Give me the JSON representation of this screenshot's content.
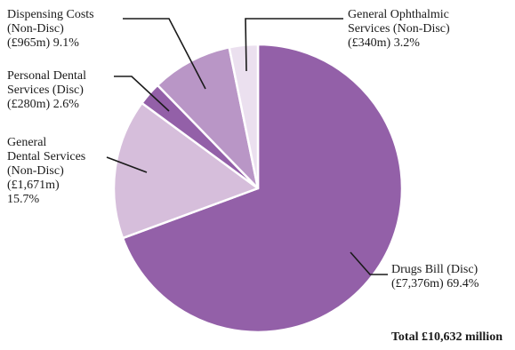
{
  "chart_data": {
    "type": "pie",
    "title": "",
    "total_label": "Total £10,632 million",
    "slices": [
      {
        "key": "drugs",
        "name": "Drugs Bill (Disc)",
        "value": 7376,
        "percent": 69.4,
        "color": "#9360a8",
        "label_lines": [
          "Drugs Bill (Disc)",
          "(£7,376m) 69.4%"
        ]
      },
      {
        "key": "gds",
        "name": "General Dental Services (Non-Disc)",
        "value": 1671,
        "percent": 15.7,
        "color": "#d6bedb",
        "label_lines": [
          "General",
          "Dental Services",
          "(Non-Disc)",
          "(£1,671m)",
          "15.7%"
        ]
      },
      {
        "key": "pds",
        "name": "Personal Dental Services (Disc)",
        "value": 280,
        "percent": 2.6,
        "color": "#9360a8",
        "label_lines": [
          "Personal Dental",
          "Services (Disc)",
          "(£280m) 2.6%"
        ]
      },
      {
        "key": "dispensing",
        "name": "Dispensing Costs (Non-Disc)",
        "value": 965,
        "percent": 9.1,
        "color": "#b996c6",
        "label_lines": [
          "Dispensing Costs",
          "(Non-Disc)",
          "(£965m) 9.1%"
        ]
      },
      {
        "key": "ophthalmic",
        "name": "General Ophthalmic Services (Non-Disc)",
        "value": 340,
        "percent": 3.2,
        "color": "#ebe0ef",
        "label_lines": [
          "General Ophthalmic",
          "Services (Non-Disc)",
          "(£340m) 3.2%"
        ]
      }
    ]
  },
  "colors": {
    "leader_line": "#1a1a1a",
    "slice_border": "#ffffff"
  }
}
